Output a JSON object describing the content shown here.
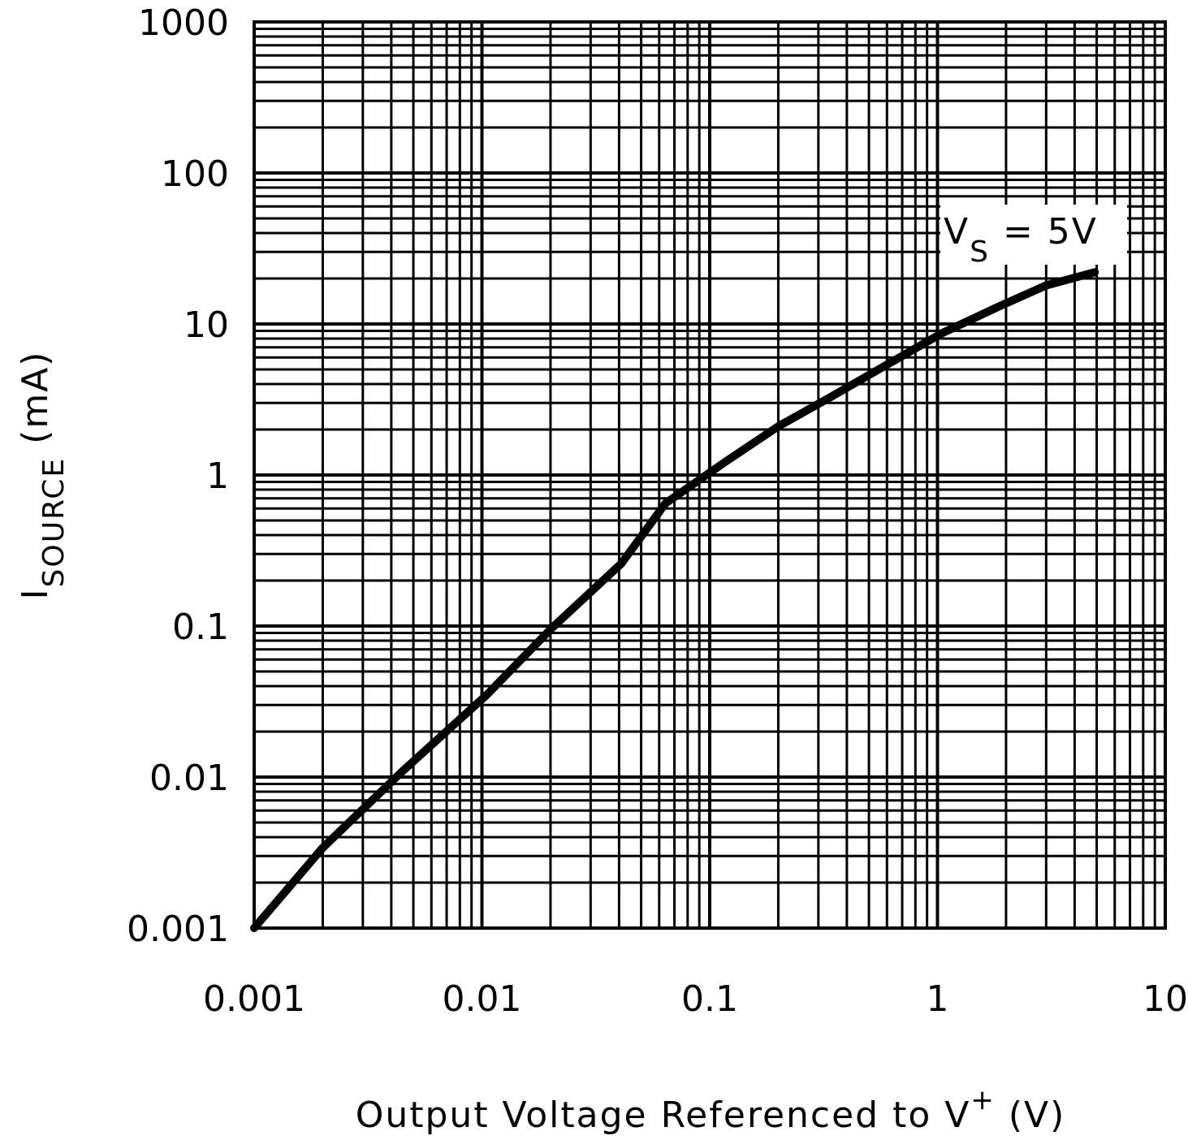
{
  "chart_data": {
    "type": "line",
    "title": "",
    "xlabel": {
      "main": "Output Voltage Referenced to V",
      "sup": "+",
      "unit": " (V)"
    },
    "ylabel": {
      "main": "I",
      "sub": "SOURCE",
      "unit": " (mA)"
    },
    "xscale": "log",
    "yscale": "log",
    "xlim": [
      0.001,
      10
    ],
    "ylim": [
      0.001,
      1000
    ],
    "xticks": [
      "0.001",
      "0.01",
      "0.1",
      "1",
      "10"
    ],
    "yticks": [
      "0.001",
      "0.01",
      "0.1",
      "1",
      "10",
      "100",
      "1000"
    ],
    "grid": true,
    "annotation": {
      "main": "V",
      "sub": "S",
      "rest": " = 5V"
    },
    "series": [
      {
        "color": "#000000",
        "x": [
          0.001,
          0.002,
          0.0045,
          0.0105,
          0.02,
          0.041,
          0.064,
          0.115,
          0.2,
          0.33,
          0.59,
          1.05,
          1.85,
          3.0,
          4.9
        ],
        "y": [
          0.001,
          0.0034,
          0.011,
          0.035,
          0.095,
          0.26,
          0.65,
          1.2,
          2.1,
          3.2,
          5.3,
          8.7,
          13,
          18,
          22
        ]
      }
    ]
  }
}
